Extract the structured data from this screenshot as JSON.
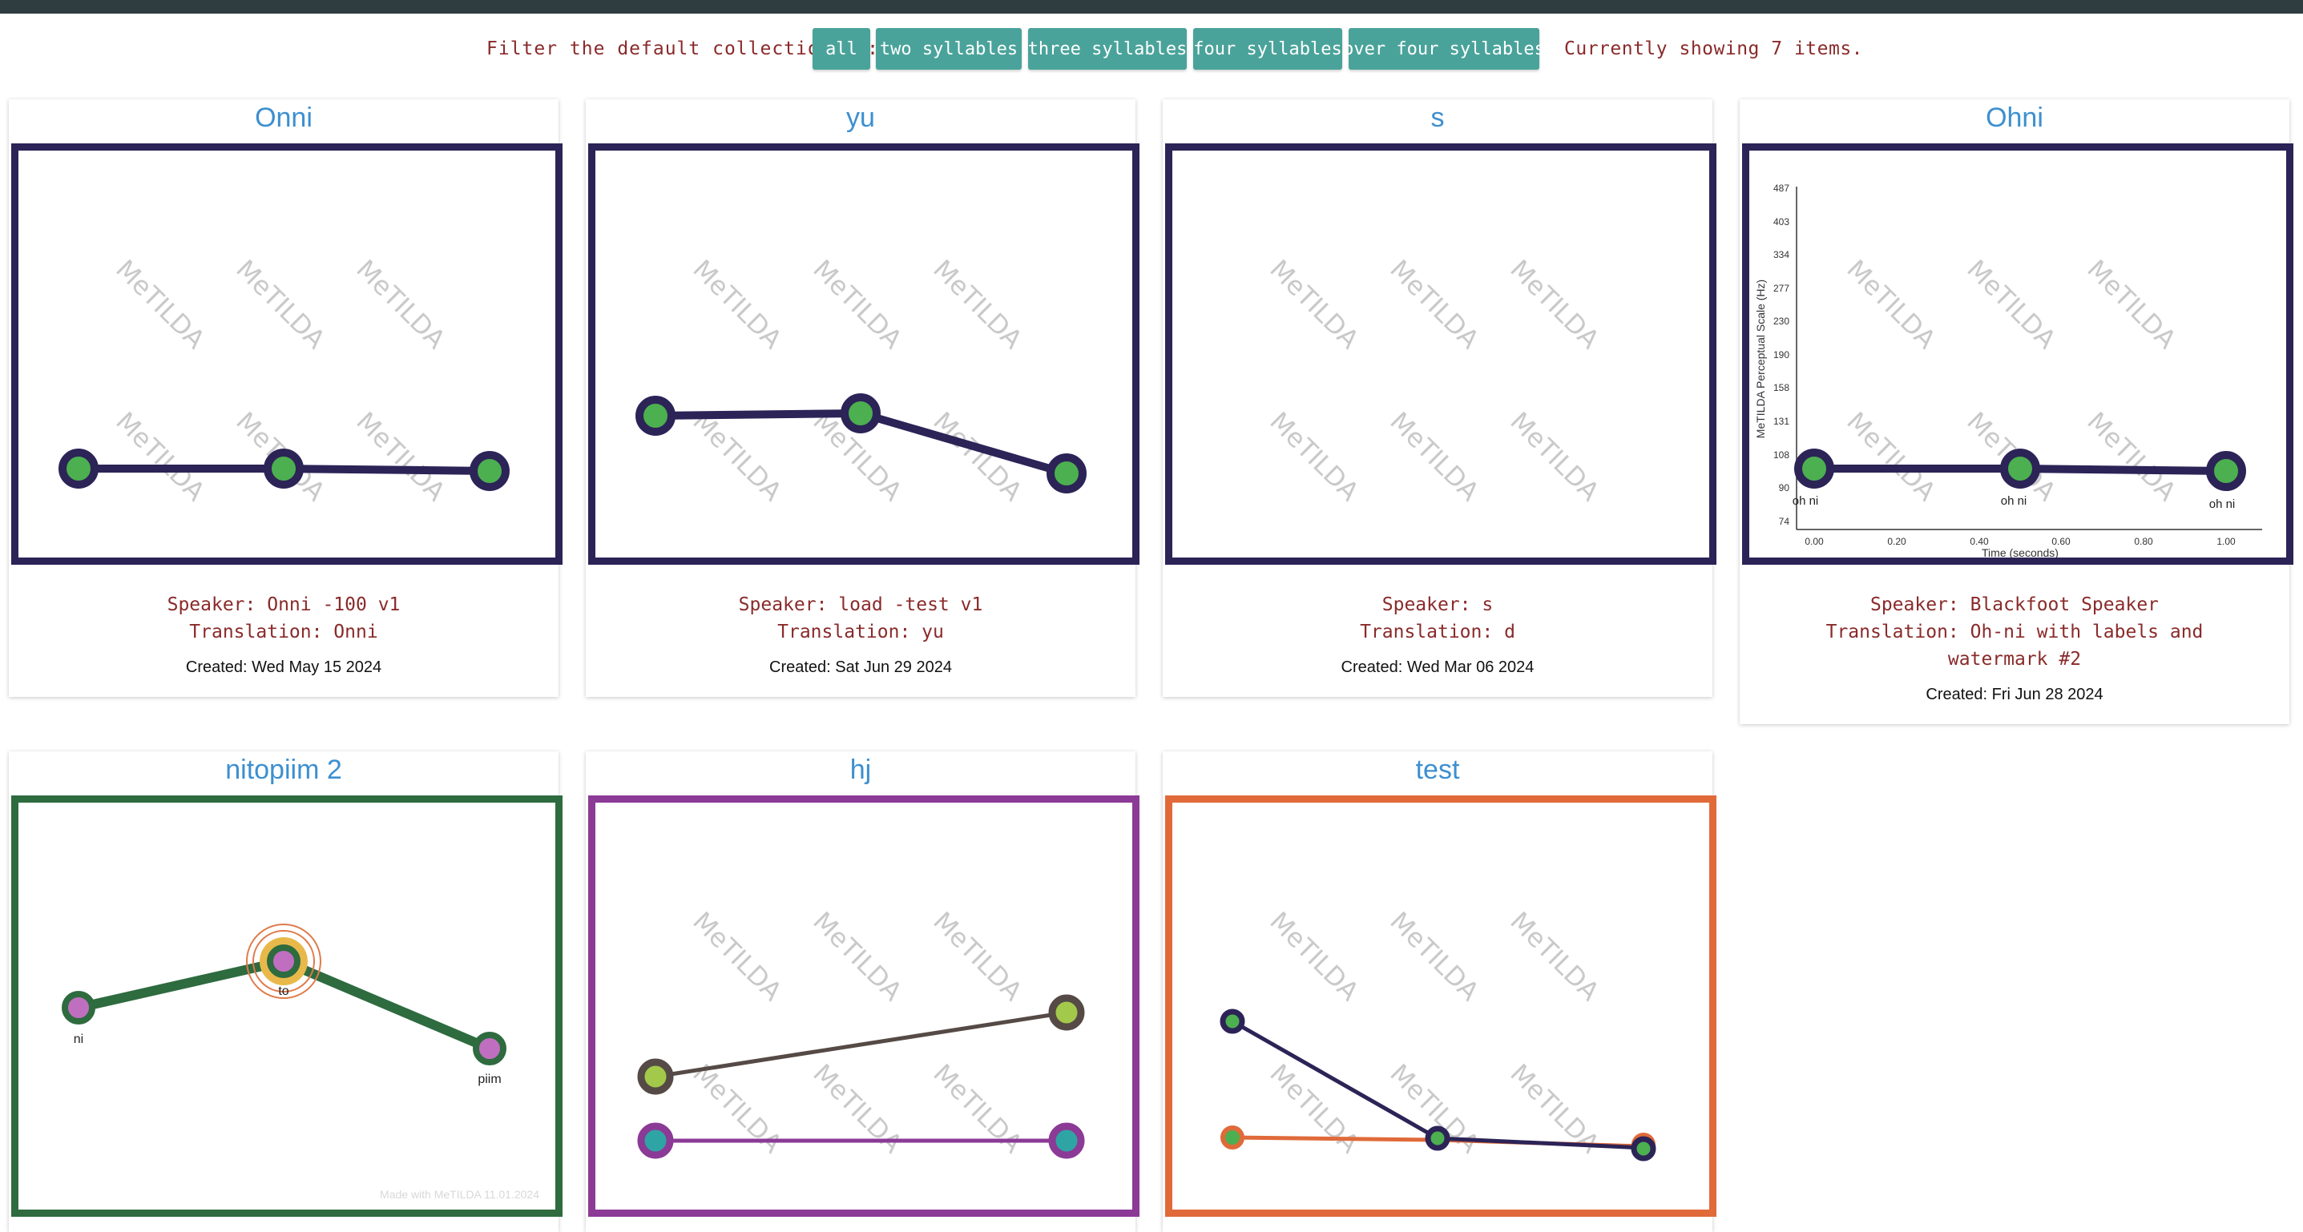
{
  "colors": {
    "topbar": "#2f3d40",
    "button_bg": "#4aa39a",
    "label_text": "#8a2a2a",
    "title_text": "#3d8fd0",
    "navy": "#2c2357",
    "green_dot": "#4caf50",
    "dark_green": "#2e6b3f",
    "purple": "#8b3a96",
    "orange": "#e06a3a"
  },
  "filter": {
    "label": "Filter the default collection by:",
    "buttons": [
      "all",
      "two syllables",
      "three syllables",
      "four syllables",
      "over four syllables"
    ],
    "count_text": "Currently showing 7 items."
  },
  "watermark": "MeTILDA",
  "cards": [
    {
      "title": "Onni",
      "speaker": "Speaker: Onni -100 v1",
      "translation": "Translation: Onni",
      "created": "Created: Wed May 15 2024",
      "frame_color": "#2c2357"
    },
    {
      "title": "yu",
      "speaker": "Speaker: load -test v1",
      "translation": "Translation: yu",
      "created": "Created: Sat Jun 29 2024",
      "frame_color": "#2c2357"
    },
    {
      "title": "s",
      "speaker": "Speaker: s",
      "translation": "Translation: d",
      "created": "Created: Wed Mar 06 2024",
      "frame_color": "#2c2357"
    },
    {
      "title": "Ohni",
      "speaker": "Speaker: Blackfoot Speaker",
      "translation": "Translation: Oh-ni with labels and watermark #2",
      "created": "Created: Fri Jun 28 2024",
      "frame_color": "#2c2357",
      "chart": {
        "ylabel": "MeTILDA Perceptual Scale (Hz)",
        "xlabel": "Time (seconds)",
        "y_ticks": [
          "487",
          "403",
          "334",
          "277",
          "230",
          "190",
          "158",
          "131",
          "108",
          "90",
          "74"
        ],
        "x_ticks": [
          "0.00",
          "0.20",
          "0.40",
          "0.60",
          "0.80",
          "1.00"
        ],
        "point_labels": [
          "oh ni",
          "oh ni",
          "oh ni"
        ]
      }
    },
    {
      "title": "nitopiim 2",
      "frame_color": "#2e6b3f",
      "point_labels": [
        "ni",
        "to",
        "piim"
      ],
      "footer": "Made with MeTILDA 11.01.2024"
    },
    {
      "title": "hj",
      "frame_color": "#8b3a96"
    },
    {
      "title": "test",
      "frame_color": "#e06a3a"
    }
  ]
}
